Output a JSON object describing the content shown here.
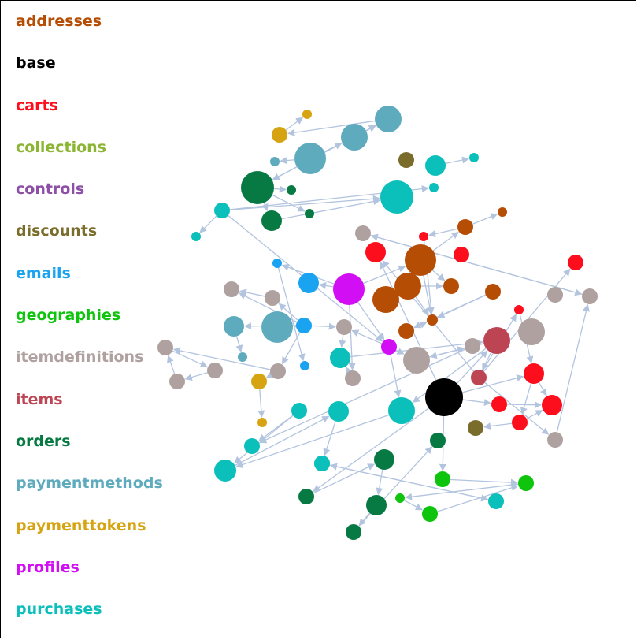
{
  "legend": {
    "items": [
      {
        "label": "addresses",
        "color": "#b54d04"
      },
      {
        "label": "base",
        "color": "#000000"
      },
      {
        "label": "carts",
        "color": "#fc0e1d"
      },
      {
        "label": "collections",
        "color": "#8db534"
      },
      {
        "label": "controls",
        "color": "#8e4fa6"
      },
      {
        "label": "discounts",
        "color": "#7a6c2b"
      },
      {
        "label": "emails",
        "color": "#1aa3f0"
      },
      {
        "label": "geographies",
        "color": "#0ec40c"
      },
      {
        "label": "itemdefinitions",
        "color": "#aea19f"
      },
      {
        "label": "items",
        "color": "#bd4553"
      },
      {
        "label": "orders",
        "color": "#077a43"
      },
      {
        "label": "paymentmethods",
        "color": "#5fabbe"
      },
      {
        "label": "paymenttokens",
        "color": "#d6a412"
      },
      {
        "label": "profiles",
        "color": "#d20ef5"
      },
      {
        "label": "purchases",
        "color": "#0bbfbb"
      }
    ]
  },
  "graph": {
    "edge_color": "#b3c4df",
    "node_groups": [
      "paymentmethods",
      "paymentmethods",
      "paymentmethods",
      "paymentmethods",
      "paymenttokens",
      "paymenttokens",
      "orders",
      "orders",
      "orders",
      "orders",
      "purchases",
      "purchases",
      "discounts",
      "purchases",
      "purchases",
      "purchases",
      "purchases",
      "addresses",
      "addresses",
      "addresses",
      "carts",
      "carts",
      "addresses",
      "addresses",
      "addresses",
      "addresses",
      "addresses",
      "addresses",
      "emails",
      "emails",
      "profiles",
      "itemdefinitions",
      "itemdefinitions",
      "paymentmethods",
      "paymentmethods",
      "paymentmethods",
      "emails",
      "emails",
      "itemdefinitions",
      "profiles",
      "purchases",
      "itemdefinitions",
      "itemdefinitions",
      "paymenttokens",
      "paymenttokens",
      "itemdefinitions",
      "itemdefinitions",
      "itemdefinitions",
      "itemdefinitions",
      "itemdefinitions",
      "itemdefinitions",
      "itemdefinitions",
      "items",
      "items",
      "carts",
      "carts",
      "itemdefinitions",
      "itemdefinitions",
      "itemdefinitions",
      "carts",
      "base",
      "carts",
      "carts",
      "carts",
      "carts",
      "discounts",
      "purchases",
      "purchases",
      "purchases",
      "purchases",
      "purchases",
      "purchases",
      "orders",
      "orders",
      "orders",
      "orders",
      "orders",
      "geographies",
      "geographies",
      "geographies",
      "geographies",
      "purchases",
      "purchases"
    ],
    "edges": [
      [
        2,
        3
      ],
      [
        2,
        1
      ],
      [
        1,
        0
      ],
      [
        0,
        4
      ],
      [
        4,
        5
      ],
      [
        0,
        6
      ],
      [
        6,
        0
      ],
      [
        6,
        9
      ],
      [
        6,
        7
      ],
      [
        6,
        8
      ],
      [
        8,
        15
      ],
      [
        10,
        11
      ],
      [
        10,
        16
      ],
      [
        10,
        15
      ],
      [
        10,
        39
      ],
      [
        13,
        14
      ],
      [
        17,
        18
      ],
      [
        18,
        19
      ],
      [
        18,
        20
      ],
      [
        20,
        22
      ],
      [
        17,
        22
      ],
      [
        17,
        23
      ],
      [
        17,
        24
      ],
      [
        17,
        25
      ],
      [
        24,
        23
      ],
      [
        24,
        22
      ],
      [
        26,
        22
      ],
      [
        27,
        22
      ],
      [
        27,
        26
      ],
      [
        30,
        29
      ],
      [
        30,
        17
      ],
      [
        30,
        39
      ],
      [
        30,
        28
      ],
      [
        30,
        41
      ],
      [
        29,
        37
      ],
      [
        36,
        31
      ],
      [
        36,
        32
      ],
      [
        32,
        31
      ],
      [
        36,
        33
      ],
      [
        33,
        34
      ],
      [
        36,
        35
      ],
      [
        36,
        38
      ],
      [
        36,
        42
      ],
      [
        42,
        43
      ],
      [
        43,
        44
      ],
      [
        38,
        40
      ],
      [
        41,
        40
      ],
      [
        40,
        52
      ],
      [
        39,
        38
      ],
      [
        42,
        47
      ],
      [
        47,
        45
      ],
      [
        45,
        46
      ],
      [
        46,
        47
      ],
      [
        42,
        42
      ],
      [
        52,
        53
      ],
      [
        53,
        54
      ],
      [
        53,
        59
      ],
      [
        53,
        56
      ],
      [
        53,
        55
      ],
      [
        56,
        57
      ],
      [
        57,
        58
      ],
      [
        58,
        57
      ],
      [
        54,
        62
      ],
      [
        62,
        63
      ],
      [
        62,
        64
      ],
      [
        64,
        63
      ],
      [
        64,
        65
      ],
      [
        60,
        61
      ],
      [
        60,
        62
      ],
      [
        60,
        52
      ],
      [
        60,
        72
      ],
      [
        61,
        63
      ],
      [
        60,
        59
      ],
      [
        52,
        48
      ],
      [
        48,
        49
      ],
      [
        49,
        68
      ],
      [
        67,
        68
      ],
      [
        67,
        69
      ],
      [
        69,
        70
      ],
      [
        70,
        71
      ],
      [
        72,
        73
      ],
      [
        73,
        74
      ],
      [
        74,
        75
      ],
      [
        75,
        76
      ],
      [
        77,
        80
      ],
      [
        78,
        79
      ],
      [
        79,
        80
      ],
      [
        80,
        78
      ],
      [
        81,
        82
      ],
      [
        82,
        81
      ],
      [
        66,
        69
      ],
      [
        52,
        66
      ],
      [
        39,
        48
      ],
      [
        39,
        66
      ],
      [
        60,
        77
      ]
    ]
  }
}
